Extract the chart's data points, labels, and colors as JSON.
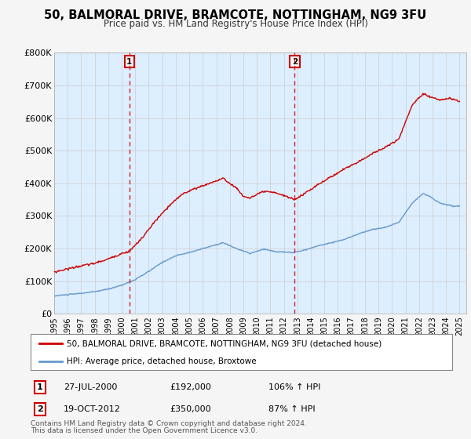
{
  "title": "50, BALMORAL DRIVE, BRAMCOTE, NOTTINGHAM, NG9 3FU",
  "subtitle": "Price paid vs. HM Land Registry's House Price Index (HPI)",
  "legend_line1": "50, BALMORAL DRIVE, BRAMCOTE, NOTTINGHAM, NG9 3FU (detached house)",
  "legend_line2": "HPI: Average price, detached house, Broxtowe",
  "sale1_label": "1",
  "sale1_date": "27-JUL-2000",
  "sale1_price": 192000,
  "sale1_price_str": "£192,000",
  "sale1_hpi": "106% ↑ HPI",
  "sale2_label": "2",
  "sale2_date": "19-OCT-2012",
  "sale2_price": 350000,
  "sale2_price_str": "£350,000",
  "sale2_hpi": "87% ↑ HPI",
  "footer_line1": "Contains HM Land Registry data © Crown copyright and database right 2024.",
  "footer_line2": "This data is licensed under the Open Government Licence v3.0.",
  "ylim": [
    0,
    800000
  ],
  "yticks": [
    0,
    100000,
    200000,
    300000,
    400000,
    500000,
    600000,
    700000,
    800000
  ],
  "ytick_labels": [
    "£0",
    "£100K",
    "£200K",
    "£300K",
    "£400K",
    "£500K",
    "£600K",
    "£700K",
    "£800K"
  ],
  "xlim_start": 1995.0,
  "xlim_end": 2025.5,
  "red_color": "#cc0000",
  "blue_color": "#6699cc",
  "bg_color": "#ddeeff",
  "fig_bg_color": "#f5f5f5",
  "legend_bg": "#ffffff",
  "vline_color": "#cc0000",
  "marker_box_color": "#cc0000",
  "grid_color": "#cccccc",
  "sale1_year_dec": 2000.573,
  "sale2_year_dec": 2012.8
}
